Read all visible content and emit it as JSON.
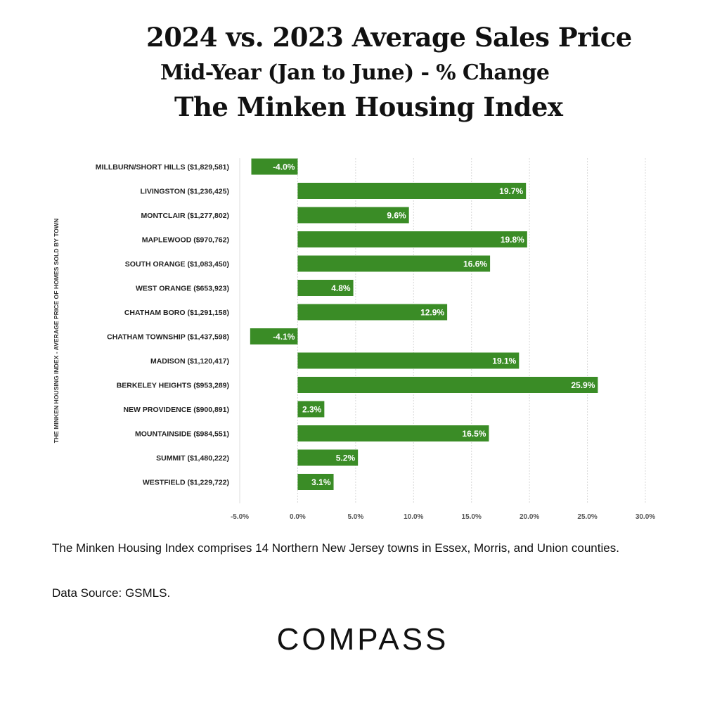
{
  "header": {
    "title": "2024 vs. 2023 Average Sales Price",
    "subtitle": "Mid-Year (Jan to June) - % Change",
    "index_name": "The Minken Housing Index"
  },
  "chart_data": {
    "type": "bar",
    "orientation": "horizontal",
    "ylabel": "THE MINKEN HOUSING INDEX - AVERAGE PRICE OF HOMES SOLD BY TOWN",
    "xlabel": "",
    "categories": [
      "MILLBURN/SHORT HILLS ($1,829,581)",
      "LIVINGSTON ($1,236,425)",
      "MONTCLAIR ($1,277,802)",
      "MAPLEWOOD ($970,762)",
      "SOUTH ORANGE ($1,083,450)",
      "WEST ORANGE ($653,923)",
      "CHATHAM BORO ($1,291,158)",
      "CHATHAM TOWNSHIP ($1,437,598)",
      "MADISON ($1,120,417)",
      "BERKELEY HEIGHTS ($953,289)",
      "NEW PROVIDENCE ($900,891)",
      "MOUNTAINSIDE ($984,551)",
      "SUMMIT ($1,480,222)",
      "WESTFIELD ($1,229,722)"
    ],
    "values": [
      -4.0,
      19.7,
      9.6,
      19.8,
      16.6,
      4.8,
      12.9,
      -4.1,
      19.1,
      25.9,
      2.3,
      16.5,
      5.2,
      3.1
    ],
    "value_labels": [
      "-4.0%",
      "19.7%",
      "9.6%",
      "19.8%",
      "16.6%",
      "4.8%",
      "12.9%",
      "-4.1%",
      "19.1%",
      "25.9%",
      "2.3%",
      "16.5%",
      "5.2%",
      "3.1%"
    ],
    "xlim": [
      -5,
      30
    ],
    "xticks": [
      -5,
      0,
      5,
      10,
      15,
      20,
      25,
      30
    ],
    "xtick_labels": [
      "-5.0%",
      "0.0%",
      "5.0%",
      "10.0%",
      "15.0%",
      "20.0%",
      "25.0%",
      "30.0%"
    ],
    "grid": "vertical",
    "bar_color": "#3a8c26"
  },
  "footer": {
    "note": "The Minken Housing Index comprises 14 Northern New Jersey towns in Essex, Morris, and Union counties.",
    "source": "Data Source: GSMLS.",
    "logo_text": "COMPASS"
  }
}
